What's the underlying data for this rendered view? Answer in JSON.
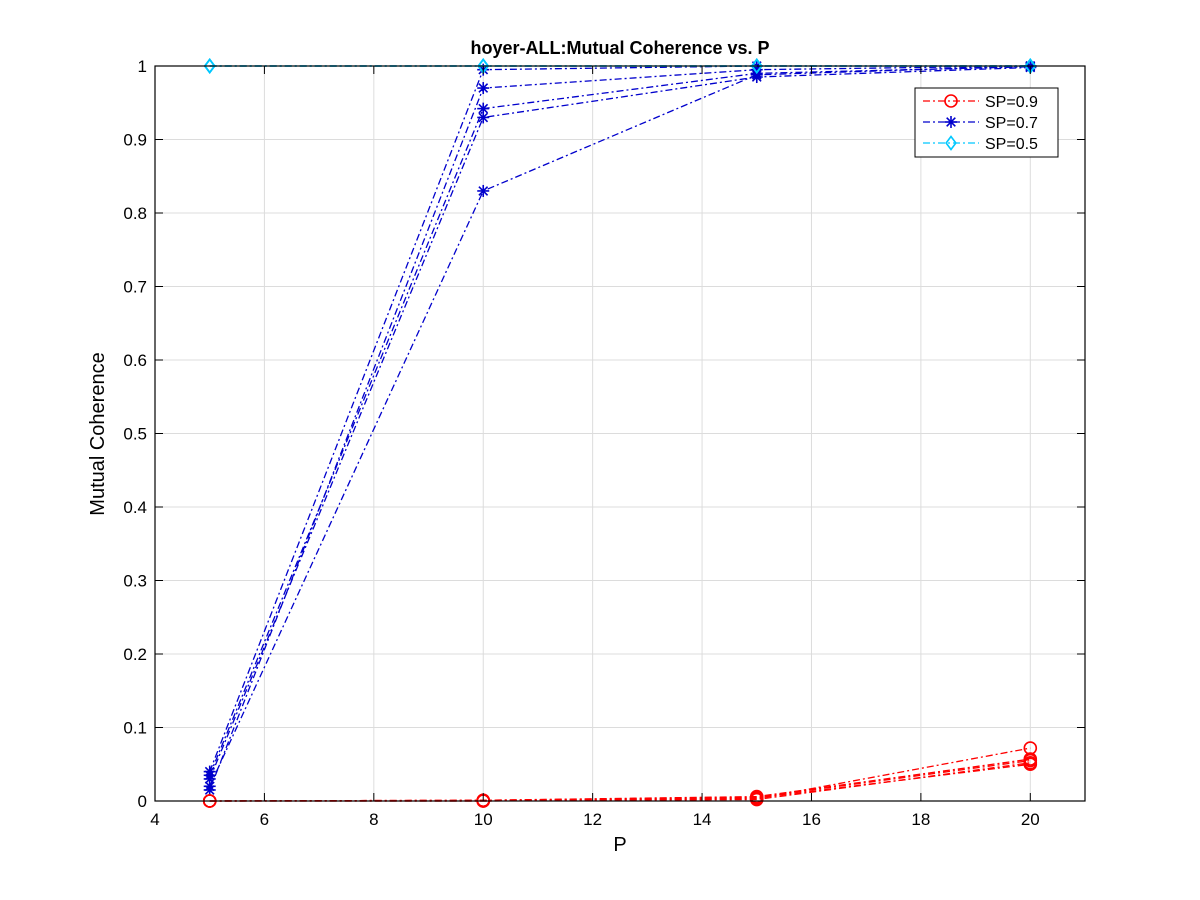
{
  "chart_data": {
    "type": "line",
    "title": "hoyer-ALL:Mutual Coherence vs. P",
    "xlabel": "P",
    "ylabel": "Mutual Coherence",
    "xlim": [
      4,
      21
    ],
    "ylim": [
      0,
      1
    ],
    "xticks": [
      4,
      6,
      8,
      10,
      12,
      14,
      16,
      18,
      20
    ],
    "yticks": [
      0,
      0.1,
      0.2,
      0.3,
      0.4,
      0.5,
      0.6,
      0.7,
      0.8,
      0.9,
      1
    ],
    "xtick_labels": [
      "4",
      "6",
      "8",
      "10",
      "12",
      "14",
      "16",
      "18",
      "20"
    ],
    "ytick_labels": [
      "0",
      "0.1",
      "0.2",
      "0.3",
      "0.4",
      "0.5",
      "0.6",
      "0.7",
      "0.8",
      "0.9",
      "1"
    ],
    "grid": true,
    "legend_position": "top-right",
    "x": [
      5,
      10,
      15,
      20
    ],
    "groups": [
      {
        "label": "SP=0.9",
        "color": "#ff0000",
        "marker": "circle",
        "lines": [
          [
            0.0,
            0.0,
            0.003,
            0.072
          ],
          [
            0.0,
            0.001,
            0.005,
            0.055
          ],
          [
            0.0,
            0.0,
            0.002,
            0.052
          ],
          [
            0.0,
            0.001,
            0.006,
            0.057
          ],
          [
            0.0,
            0.0,
            0.004,
            0.05
          ]
        ]
      },
      {
        "label": "SP=0.7",
        "color": "#0000cc",
        "marker": "asterisk",
        "lines": [
          [
            0.02,
            0.83,
            0.988,
            1.0
          ],
          [
            0.03,
            0.93,
            0.985,
            0.998
          ],
          [
            0.035,
            0.942,
            0.99,
            0.999
          ],
          [
            0.015,
            0.97,
            0.995,
            1.0
          ],
          [
            0.04,
            0.995,
            1.0,
            1.0
          ]
        ]
      },
      {
        "label": "SP=0.5",
        "color": "#00c8ff",
        "marker": "diamond",
        "lines": [
          [
            1.0,
            1.0,
            1.0,
            1.0
          ],
          [
            1.0,
            1.0,
            1.0,
            1.0
          ],
          [
            1.0,
            1.0,
            1.0,
            1.0
          ],
          [
            1.0,
            1.0,
            1.0,
            1.0
          ],
          [
            1.0,
            1.0,
            1.0,
            1.0
          ]
        ]
      }
    ]
  }
}
